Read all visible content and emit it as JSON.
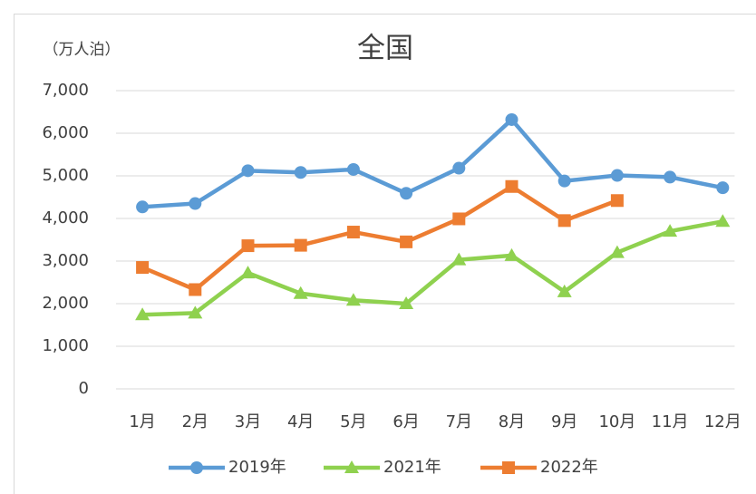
{
  "chart_data": {
    "type": "line",
    "title": "全国",
    "ylabel": "（万人泊）",
    "categories": [
      "1月",
      "2月",
      "3月",
      "4月",
      "5月",
      "6月",
      "7月",
      "8月",
      "9月",
      "10月",
      "11月",
      "12月"
    ],
    "series": [
      {
        "name": "2019年",
        "color": "#5b9bd5",
        "marker": "circle",
        "values": [
          4270,
          4350,
          5120,
          5080,
          5150,
          4590,
          5180,
          6320,
          4880,
          5010,
          4970,
          4720
        ]
      },
      {
        "name": "2021年",
        "color": "#8fd14f",
        "marker": "triangle",
        "values": [
          1740,
          1780,
          2720,
          2240,
          2080,
          2000,
          3030,
          3130,
          2280,
          3200,
          3700,
          3930
        ]
      },
      {
        "name": "2022年",
        "color": "#ed7d31",
        "marker": "square",
        "values": [
          2850,
          2330,
          3360,
          3370,
          3680,
          3450,
          3990,
          4750,
          3950,
          4420,
          null,
          null
        ]
      }
    ],
    "ylim": [
      0,
      7000
    ],
    "yticks": [
      0,
      {
        "value": 1000,
        "label": "1,000"
      },
      {
        "value": 2000,
        "label": "2,000"
      },
      {
        "value": 3000,
        "label": "3,000"
      },
      {
        "value": 4000,
        "label": "4,000"
      },
      {
        "value": 5000,
        "label": "5,000"
      },
      {
        "value": 6000,
        "label": "6,000"
      },
      {
        "value": 7000,
        "label": "7,000"
      }
    ],
    "grid": true,
    "legend": "bottom"
  }
}
